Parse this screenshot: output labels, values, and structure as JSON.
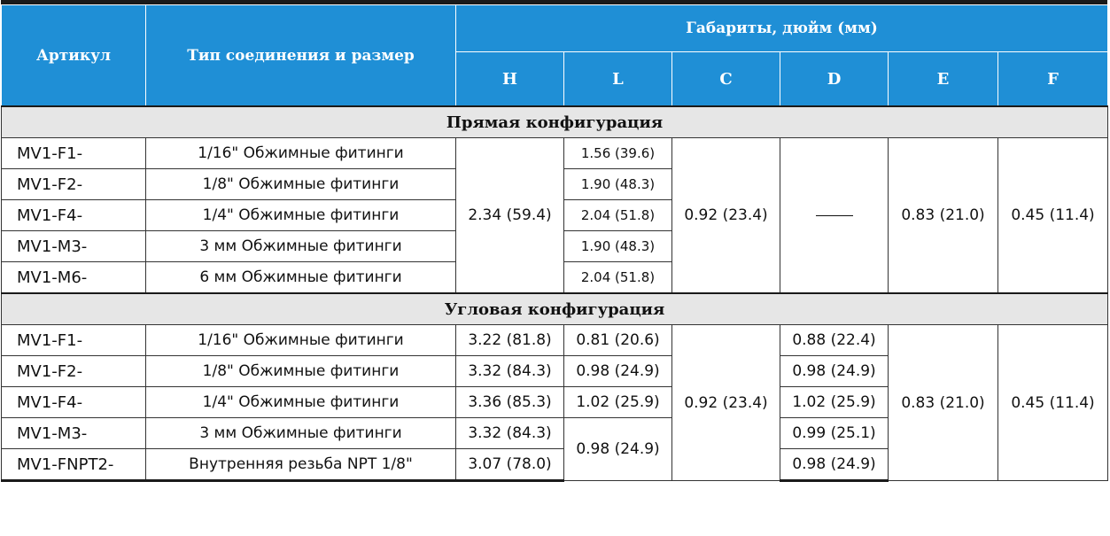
{
  "headers": {
    "article": "Артикул",
    "connection": "Тип соединения и размер",
    "dims": "Габариты, дюйм (мм)",
    "cols": [
      "H",
      "L",
      "C",
      "D",
      "E",
      "F"
    ]
  },
  "straight": {
    "title": "Прямая конфигурация",
    "rows": [
      {
        "article": "MV1-F1-",
        "conn": "1/16\" Обжимные фитинги",
        "L": "1.56 (39.6)"
      },
      {
        "article": "MV1-F2-",
        "conn": "1/8\" Обжимные фитинги",
        "L": "1.90 (48.3)"
      },
      {
        "article": "MV1-F4-",
        "conn": "1/4\" Обжимные фитинги",
        "L": "2.04 (51.8)"
      },
      {
        "article": "MV1-M3-",
        "conn": "3 мм Обжимные фитинги",
        "L": "1.90 (48.3)"
      },
      {
        "article": "MV1-M6-",
        "conn": "6 мм Обжимные фитинги",
        "L": "2.04 (51.8)"
      }
    ],
    "H": "2.34 (59.4)",
    "C": "0.92 (23.4)",
    "E": "0.83 (21.0)",
    "F": "0.45 (11.4)"
  },
  "angled": {
    "title": "Угловая конфигурация",
    "rows": [
      {
        "article": "MV1-F1-",
        "conn": "1/16\" Обжимные фитинги",
        "H": "3.22 (81.8)",
        "L": "0.81 (20.6)",
        "D": "0.88 (22.4)"
      },
      {
        "article": "MV1-F2-",
        "conn": "1/8\" Обжимные фитинги",
        "H": "3.32 (84.3)",
        "L": "0.98 (24.9)",
        "D": "0.98 (24.9)"
      },
      {
        "article": "MV1-F4-",
        "conn": "1/4\" Обжимные фитинги",
        "H": "3.36 (85.3)",
        "L": "1.02 (25.9)",
        "D": "1.02 (25.9)"
      },
      {
        "article": "MV1-M3-",
        "conn": "3 мм Обжимные фитинги",
        "H": "3.32 (84.3)",
        "D": "0.99 (25.1)"
      },
      {
        "article": "MV1-FNPT2-",
        "conn": "Внутренняя резьба NPT 1/8\"",
        "H": "3.07 (78.0)",
        "D": "0.98 (24.9)"
      }
    ],
    "L_merged": "0.98 (24.9)",
    "C": "0.92 (23.4)",
    "E": "0.83 (21.0)",
    "F": "0.45 (11.4)"
  }
}
